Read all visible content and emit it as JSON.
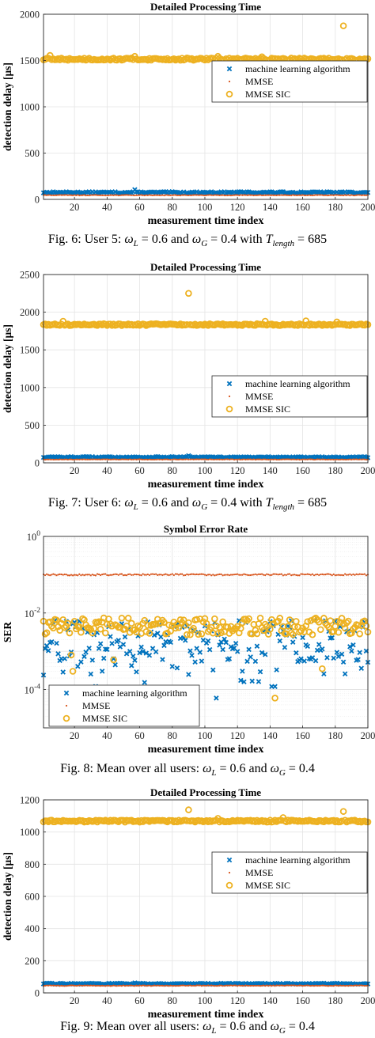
{
  "colors": {
    "ml": "#0072bd",
    "mmse": "#d95319",
    "sic": "#edb120"
  },
  "figures": [
    {
      "caption": {
        "prefix": "Fig. 6: User 5: ",
        "math": [
          {
            "sym": "ω",
            "sub": "L",
            "text": " = 0.6 and "
          },
          {
            "sym": "ω",
            "sub": "G",
            "text": " = 0.4 with "
          },
          {
            "sym": "T",
            "sub": "length",
            "text": " = 685"
          }
        ]
      },
      "chart_data": {
        "type": "scatter",
        "title": "Detailed Processing Time",
        "xlabel": "measurement time index",
        "ylabel": "detection delay [µs]",
        "xlim": [
          1,
          200
        ],
        "ylim": [
          0,
          2000
        ],
        "xticks": [
          20,
          40,
          60,
          80,
          100,
          120,
          140,
          160,
          180,
          200
        ],
        "yticks": [
          0,
          500,
          1000,
          1500,
          2000
        ],
        "yscale": "linear",
        "grid": true,
        "legend_position": "right",
        "series": [
          {
            "name": "machine learning algorithm",
            "marker": "x",
            "base": 75,
            "jitter": 8,
            "outliers": [
              [
                57,
                105
              ]
            ]
          },
          {
            "name": "MMSE",
            "marker": "dot",
            "base": 45,
            "jitter": 3,
            "outliers": []
          },
          {
            "name": "MMSE SIC",
            "marker": "circle",
            "base": 1515,
            "jitter": 12,
            "outliers": [
              [
                185,
                1875
              ],
              [
                57,
                1545
              ],
              [
                108,
                1545
              ],
              [
                5,
                1555
              ],
              [
                135,
                1540
              ]
            ]
          }
        ]
      }
    },
    {
      "caption": {
        "prefix": "Fig. 7: User 6: ",
        "math": [
          {
            "sym": "ω",
            "sub": "L",
            "text": " = 0.6 and "
          },
          {
            "sym": "ω",
            "sub": "G",
            "text": " = 0.4 with "
          },
          {
            "sym": "T",
            "sub": "length",
            "text": " = 685"
          }
        ]
      },
      "chart_data": {
        "type": "scatter",
        "title": "Detailed Processing Time",
        "xlabel": "measurement time index",
        "ylabel": "detection delay [µs]",
        "xlim": [
          1,
          200
        ],
        "ylim": [
          0,
          2500
        ],
        "xticks": [
          20,
          40,
          60,
          80,
          100,
          120,
          140,
          160,
          180,
          200
        ],
        "yticks": [
          0,
          500,
          1000,
          1500,
          2000,
          2500
        ],
        "yscale": "linear",
        "grid": true,
        "legend_position": "right",
        "series": [
          {
            "name": "machine learning algorithm",
            "marker": "x",
            "base": 75,
            "jitter": 8,
            "outliers": [
              [
                90,
                95
              ]
            ]
          },
          {
            "name": "MMSE",
            "marker": "dot",
            "base": 45,
            "jitter": 3,
            "outliers": []
          },
          {
            "name": "MMSE SIC",
            "marker": "circle",
            "base": 1835,
            "jitter": 12,
            "outliers": [
              [
                90,
                2250
              ],
              [
                13,
                1880
              ],
              [
                137,
                1880
              ],
              [
                162,
                1885
              ],
              [
                181,
                1870
              ]
            ]
          }
        ]
      }
    },
    {
      "caption": {
        "prefix": "Fig. 8: Mean over all users: ",
        "math": [
          {
            "sym": "ω",
            "sub": "L",
            "text": " = 0.6 and "
          },
          {
            "sym": "ω",
            "sub": "G",
            "text": " = 0.4"
          }
        ]
      },
      "chart_data": {
        "type": "scatter",
        "title": "Symbol Error Rate",
        "xlabel": "measurement time index",
        "ylabel": "SER",
        "xlim": [
          1,
          200
        ],
        "ylim": [
          1e-05,
          1
        ],
        "xticks": [
          20,
          40,
          60,
          80,
          100,
          120,
          140,
          160,
          180,
          200
        ],
        "ytick_labels": [
          {
            "base": "10",
            "exp": "0",
            "value": 1
          },
          {
            "base": "10",
            "exp": "-2",
            "value": 0.01
          },
          {
            "base": "10",
            "exp": "-4",
            "value": 0.0001
          }
        ],
        "yscale": "log",
        "grid": true,
        "legend_position": "lower-left",
        "series": [
          {
            "name": "machine learning algorithm",
            "marker": "x",
            "logbase": 0.0018,
            "logspread": 0.55,
            "outliers": [
              [
                33,
                0.00012
              ],
              [
                107,
                6e-05
              ],
              [
                141,
                0.00012
              ],
              [
                143,
                0.00012
              ],
              [
                17,
                0.00075
              ]
            ]
          },
          {
            "name": "MMSE",
            "marker": "dot",
            "logbase": 0.1,
            "logspread": 0.02,
            "outliers": []
          },
          {
            "name": "MMSE SIC",
            "marker": "circle",
            "logbase": 0.0045,
            "logspread": 0.22,
            "outliers": [
              [
                19,
                0.0003
              ],
              [
                143,
                6e-05
              ],
              [
                172,
                0.00035
              ],
              [
                44,
                0.0006
              ],
              [
                18,
                0.0008
              ]
            ]
          }
        ]
      }
    },
    {
      "caption": {
        "prefix": "Fig. 9: Mean over all users: ",
        "math": [
          {
            "sym": "ω",
            "sub": "L",
            "text": " = 0.6 and "
          },
          {
            "sym": "ω",
            "sub": "G",
            "text": " = 0.4"
          }
        ]
      },
      "chart_data": {
        "type": "scatter",
        "title": "Detailed Processing Time",
        "xlabel": "measurement time index",
        "ylabel": "detection delay [µs]",
        "xlim": [
          1,
          200
        ],
        "ylim": [
          0,
          1200
        ],
        "xticks": [
          20,
          40,
          60,
          80,
          100,
          120,
          140,
          160,
          180,
          200
        ],
        "yticks": [
          0,
          200,
          400,
          600,
          800,
          1000,
          1200
        ],
        "yscale": "linear",
        "grid": true,
        "legend_position": "right",
        "series": [
          {
            "name": "machine learning algorithm",
            "marker": "x",
            "base": 57,
            "jitter": 3,
            "outliers": [
              [
                57,
                62
              ]
            ]
          },
          {
            "name": "MMSE",
            "marker": "dot",
            "base": 45,
            "jitter": 2,
            "outliers": []
          },
          {
            "name": "MMSE SIC",
            "marker": "circle",
            "base": 1068,
            "jitter": 6,
            "outliers": [
              [
                90,
                1138
              ],
              [
                185,
                1128
              ],
              [
                148,
                1090
              ],
              [
                108,
                1085
              ]
            ]
          }
        ]
      }
    }
  ]
}
